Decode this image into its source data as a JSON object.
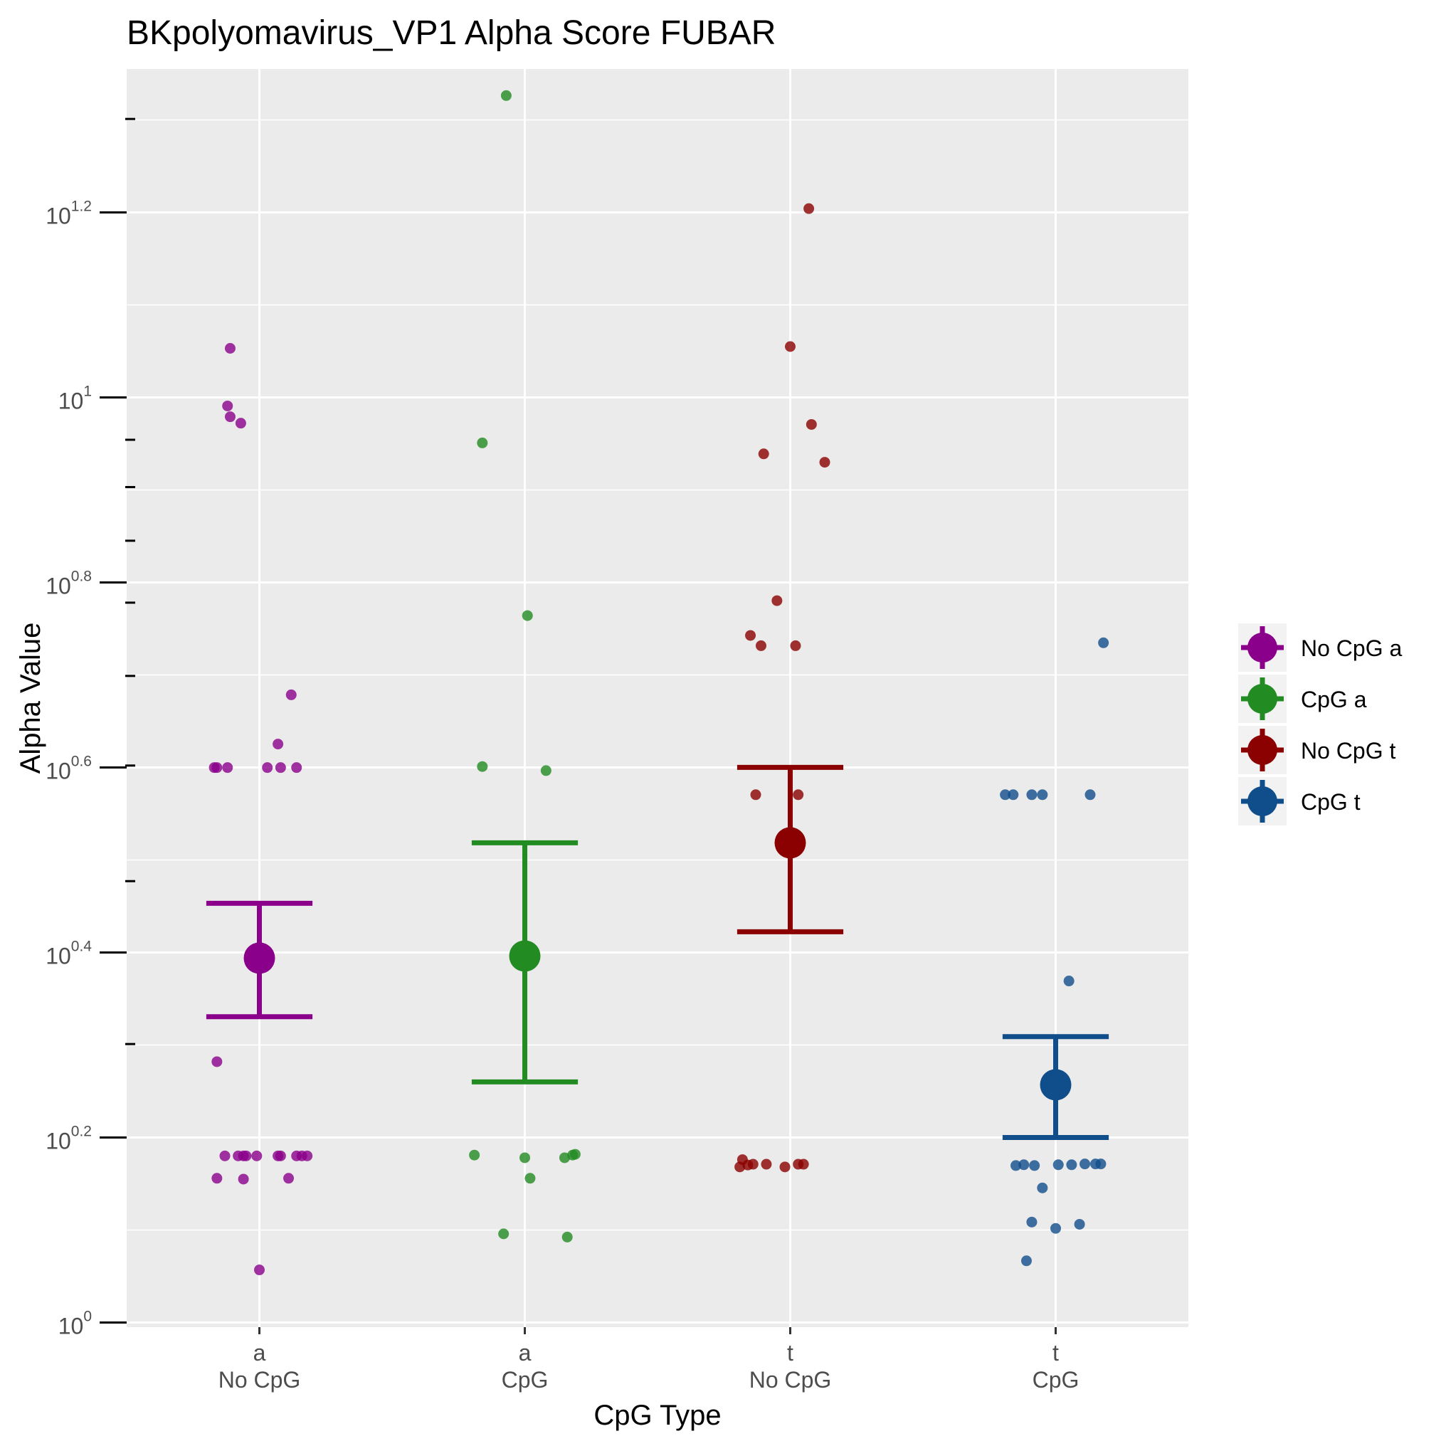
{
  "chart_data": {
    "type": "scatter",
    "title": "BKpolyomavirus_VP1 Alpha Score FUBAR",
    "xlabel": "CpG Type",
    "ylabel": "Alpha Value",
    "y_scale": "log10",
    "ylim_log10": [
      -0.005,
      1.355
    ],
    "y_ticks": [
      {
        "base": "10",
        "exp": "0",
        "log10": 0.0
      },
      {
        "base": "10",
        "exp": "0.2",
        "log10": 0.2
      },
      {
        "base": "10",
        "exp": "0.4",
        "log10": 0.4
      },
      {
        "base": "10",
        "exp": "0.6",
        "log10": 0.6
      },
      {
        "base": "10",
        "exp": "0.8",
        "log10": 0.8
      },
      {
        "base": "10",
        "exp": "1",
        "log10": 1.0
      },
      {
        "base": "10",
        "exp": "1.2",
        "log10": 1.2
      }
    ],
    "y_minor_ticks_log10": [
      0.1,
      0.3,
      0.5,
      0.7,
      0.9,
      1.1,
      1.3
    ],
    "y_extra_ticks_value": [
      9,
      8,
      7,
      6,
      5,
      4,
      3,
      2,
      20
    ],
    "grid": true,
    "legend_position": "right",
    "categories": [
      {
        "line1": "a",
        "line2": "No CpG"
      },
      {
        "line1": "a",
        "line2": "CpG"
      },
      {
        "line1": "t",
        "line2": "No CpG"
      },
      {
        "line1": "t",
        "line2": "CpG"
      }
    ],
    "series": [
      {
        "name": "No CpG a",
        "color": "#8B008B",
        "category_index": 0,
        "mean": 2.477,
        "lower": 2.141,
        "upper": 2.839,
        "points": [
          {
            "offset": -0.11,
            "value": 11.3
          },
          {
            "offset": -0.12,
            "value": 9.79
          },
          {
            "offset": -0.11,
            "value": 9.53
          },
          {
            "offset": -0.07,
            "value": 9.38
          },
          {
            "offset": 0.12,
            "value": 4.77
          },
          {
            "offset": 0.07,
            "value": 4.22
          },
          {
            "offset": -0.17,
            "value": 3.98
          },
          {
            "offset": -0.16,
            "value": 3.98
          },
          {
            "offset": -0.12,
            "value": 3.98
          },
          {
            "offset": 0.03,
            "value": 3.98
          },
          {
            "offset": 0.08,
            "value": 3.98
          },
          {
            "offset": 0.14,
            "value": 3.98
          },
          {
            "offset": -0.16,
            "value": 1.914
          },
          {
            "offset": -0.13,
            "value": 1.514
          },
          {
            "offset": -0.08,
            "value": 1.514
          },
          {
            "offset": -0.06,
            "value": 1.514
          },
          {
            "offset": -0.05,
            "value": 1.514
          },
          {
            "offset": -0.01,
            "value": 1.514
          },
          {
            "offset": 0.07,
            "value": 1.514
          },
          {
            "offset": 0.08,
            "value": 1.514
          },
          {
            "offset": 0.14,
            "value": 1.514
          },
          {
            "offset": 0.16,
            "value": 1.514
          },
          {
            "offset": 0.18,
            "value": 1.514
          },
          {
            "offset": -0.16,
            "value": 1.432
          },
          {
            "offset": -0.06,
            "value": 1.429
          },
          {
            "offset": 0.11,
            "value": 1.432
          },
          {
            "offset": 0.0,
            "value": 1.14
          }
        ]
      },
      {
        "name": "CpG a",
        "color": "#228B22",
        "category_index": 1,
        "mean": 2.49,
        "lower": 1.82,
        "upper": 3.3,
        "points": [
          {
            "offset": -0.07,
            "value": 21.2
          },
          {
            "offset": -0.16,
            "value": 8.93
          },
          {
            "offset": 0.01,
            "value": 5.81
          },
          {
            "offset": -0.16,
            "value": 3.99
          },
          {
            "offset": 0.08,
            "value": 3.95
          },
          {
            "offset": -0.19,
            "value": 1.517
          },
          {
            "offset": 0.0,
            "value": 1.507
          },
          {
            "offset": 0.15,
            "value": 1.507
          },
          {
            "offset": 0.18,
            "value": 1.517
          },
          {
            "offset": 0.19,
            "value": 1.52
          },
          {
            "offset": 0.02,
            "value": 1.432
          },
          {
            "offset": -0.08,
            "value": 1.247
          },
          {
            "offset": 0.16,
            "value": 1.237
          }
        ]
      },
      {
        "name": "No CpG t",
        "color": "#8B0000",
        "category_index": 2,
        "mean": 3.3,
        "lower": 2.645,
        "upper": 3.982,
        "points": [
          {
            "offset": 0.07,
            "value": 16.0
          },
          {
            "offset": 0.0,
            "value": 11.35
          },
          {
            "offset": 0.08,
            "value": 9.35
          },
          {
            "offset": -0.1,
            "value": 8.69
          },
          {
            "offset": 0.13,
            "value": 8.51
          },
          {
            "offset": -0.05,
            "value": 6.03
          },
          {
            "offset": -0.15,
            "value": 5.53
          },
          {
            "offset": -0.11,
            "value": 5.39
          },
          {
            "offset": 0.02,
            "value": 5.39
          },
          {
            "offset": -0.13,
            "value": 3.72
          },
          {
            "offset": 0.03,
            "value": 3.72
          },
          {
            "offset": -0.18,
            "value": 1.5
          },
          {
            "offset": -0.19,
            "value": 1.473
          },
          {
            "offset": -0.16,
            "value": 1.48
          },
          {
            "offset": -0.14,
            "value": 1.483
          },
          {
            "offset": -0.09,
            "value": 1.483
          },
          {
            "offset": -0.02,
            "value": 1.473
          },
          {
            "offset": 0.03,
            "value": 1.483
          },
          {
            "offset": 0.05,
            "value": 1.483
          }
        ]
      },
      {
        "name": "CpG t",
        "color": "#104E8B",
        "category_index": 3,
        "mean": 1.807,
        "lower": 1.585,
        "upper": 2.037,
        "points": [
          {
            "offset": 0.18,
            "value": 5.43
          },
          {
            "offset": -0.19,
            "value": 3.72
          },
          {
            "offset": -0.16,
            "value": 3.72
          },
          {
            "offset": -0.09,
            "value": 3.72
          },
          {
            "offset": -0.05,
            "value": 3.72
          },
          {
            "offset": 0.13,
            "value": 3.72
          },
          {
            "offset": 0.05,
            "value": 2.34
          },
          {
            "offset": -0.15,
            "value": 1.478
          },
          {
            "offset": -0.12,
            "value": 1.481
          },
          {
            "offset": -0.08,
            "value": 1.478
          },
          {
            "offset": 0.01,
            "value": 1.481
          },
          {
            "offset": 0.06,
            "value": 1.481
          },
          {
            "offset": 0.11,
            "value": 1.484
          },
          {
            "offset": 0.15,
            "value": 1.484
          },
          {
            "offset": 0.17,
            "value": 1.484
          },
          {
            "offset": -0.05,
            "value": 1.398
          },
          {
            "offset": -0.09,
            "value": 1.284
          },
          {
            "offset": 0.0,
            "value": 1.264
          },
          {
            "offset": 0.09,
            "value": 1.277
          },
          {
            "offset": -0.11,
            "value": 1.166
          }
        ]
      }
    ]
  }
}
